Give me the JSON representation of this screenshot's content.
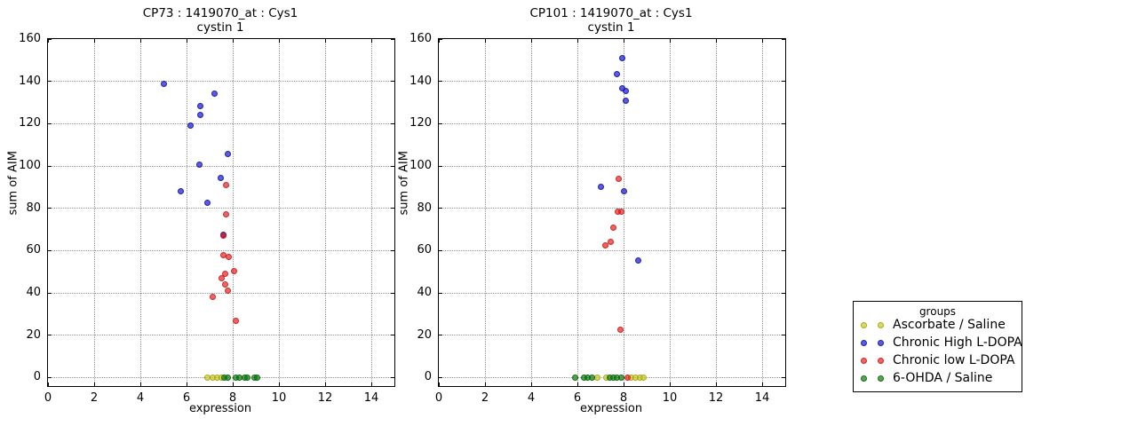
{
  "colors": {
    "yellow": {
      "fill": "rgba(195,195,0,0.62)",
      "edge": "rgba(160,160,25,0.85)",
      "hex": "#d8d860"
    },
    "blue": {
      "fill": "rgba(20,20,215,0.70)",
      "edge": "rgba(25,25,160,0.85)",
      "hex": "#5b5be0"
    },
    "red": {
      "fill": "rgba(235,10,10,0.64)",
      "edge": "rgba(190,35,35,0.85)",
      "hex": "#ee6666"
    },
    "green": {
      "fill": "rgba(0,125,0,0.67)",
      "edge": "rgba(15,95,15,0.85)",
      "hex": "#55a055"
    }
  },
  "legend": {
    "title": "groups",
    "entries": [
      {
        "label": "Ascorbate / Saline",
        "color_key": "yellow"
      },
      {
        "label": "Chronic High L-DOPA",
        "color_key": "blue"
      },
      {
        "label": "Chronic low L-DOPA",
        "color_key": "red"
      },
      {
        "label": "6-OHDA / Saline",
        "color_key": "green"
      }
    ]
  },
  "chart_data": [
    {
      "type": "scatter",
      "title": "CP73 : 1419070_at : Cys1",
      "subtitle": "cystin 1",
      "xlabel": "expression",
      "ylabel": "sum of AIM",
      "xlim": [
        0,
        15
      ],
      "ylim": [
        -4,
        160
      ],
      "xticks": [
        0,
        2,
        4,
        6,
        8,
        10,
        12,
        14
      ],
      "yticks": [
        0,
        20,
        40,
        60,
        80,
        100,
        120,
        140,
        160
      ],
      "grid": true,
      "series": [
        {
          "name": "Ascorbate / Saline",
          "color_key": "yellow",
          "points": [
            [
              6.9,
              0
            ],
            [
              7.12,
              0
            ],
            [
              7.32,
              0
            ],
            [
              7.5,
              0
            ]
          ]
        },
        {
          "name": "Chronic High L-DOPA",
          "color_key": "blue",
          "points": [
            [
              5.03,
              139
            ],
            [
              5.76,
              88
            ],
            [
              6.16,
              119
            ],
            [
              6.57,
              100.5
            ],
            [
              6.59,
              128.5
            ],
            [
              6.59,
              124
            ],
            [
              6.9,
              82.5
            ],
            [
              7.2,
              134
            ],
            [
              7.47,
              94.5
            ],
            [
              7.58,
              67.5
            ],
            [
              7.8,
              105.5
            ]
          ]
        },
        {
          "name": "Chronic low L-DOPA",
          "color_key": "red",
          "points": [
            [
              7.7,
              91
            ],
            [
              7.7,
              77
            ],
            [
              7.6,
              67
            ],
            [
              7.6,
              57.7
            ],
            [
              7.83,
              57
            ],
            [
              8.04,
              50.5
            ],
            [
              7.68,
              49
            ],
            [
              7.52,
              47
            ],
            [
              7.68,
              44
            ],
            [
              7.8,
              41
            ],
            [
              7.15,
              38
            ],
            [
              8.15,
              27
            ]
          ]
        },
        {
          "name": "6-OHDA / Saline",
          "color_key": "green",
          "points": [
            [
              7.62,
              0
            ],
            [
              7.8,
              0
            ],
            [
              8.15,
              0
            ],
            [
              8.3,
              0
            ],
            [
              8.5,
              0
            ],
            [
              8.65,
              0
            ],
            [
              8.95,
              0
            ],
            [
              9.05,
              0
            ]
          ]
        }
      ]
    },
    {
      "type": "scatter",
      "title": "CP101 : 1419070_at : Cys1",
      "subtitle": "cystin 1",
      "xlabel": "expression",
      "ylabel": "sum of AIM",
      "xlim": [
        0,
        15
      ],
      "ylim": [
        -4,
        160
      ],
      "xticks": [
        0,
        2,
        4,
        6,
        8,
        10,
        12,
        14
      ],
      "yticks": [
        0,
        20,
        40,
        60,
        80,
        100,
        120,
        140,
        160
      ],
      "grid": true,
      "series": [
        {
          "name": "Ascorbate / Saline",
          "color_key": "yellow",
          "points": [
            [
              6.85,
              0
            ],
            [
              7.25,
              0
            ],
            [
              8.32,
              0
            ],
            [
              8.5,
              0
            ],
            [
              8.7,
              0
            ],
            [
              8.85,
              0
            ]
          ]
        },
        {
          "name": "Chronic High L-DOPA",
          "color_key": "blue",
          "points": [
            [
              7.96,
              151
            ],
            [
              7.72,
              143.5
            ],
            [
              7.95,
              136.7
            ],
            [
              8.08,
              135.6
            ],
            [
              8.1,
              130.7
            ],
            [
              7.03,
              90
            ],
            [
              8.03,
              88
            ],
            [
              8.63,
              55.5
            ]
          ]
        },
        {
          "name": "Chronic low L-DOPA",
          "color_key": "red",
          "points": [
            [
              7.78,
              94
            ],
            [
              7.76,
              78.5
            ],
            [
              7.9,
              78.3
            ],
            [
              7.54,
              71
            ],
            [
              7.46,
              64
            ],
            [
              7.22,
              62.5
            ],
            [
              7.87,
              22.5
            ],
            [
              8.17,
              0
            ]
          ]
        },
        {
          "name": "6-OHDA / Saline",
          "color_key": "green",
          "points": [
            [
              5.92,
              0
            ],
            [
              6.27,
              0
            ],
            [
              6.45,
              0
            ],
            [
              6.63,
              0
            ],
            [
              7.42,
              0
            ],
            [
              7.57,
              0
            ],
            [
              7.73,
              0
            ],
            [
              7.9,
              0
            ]
          ]
        }
      ]
    }
  ]
}
